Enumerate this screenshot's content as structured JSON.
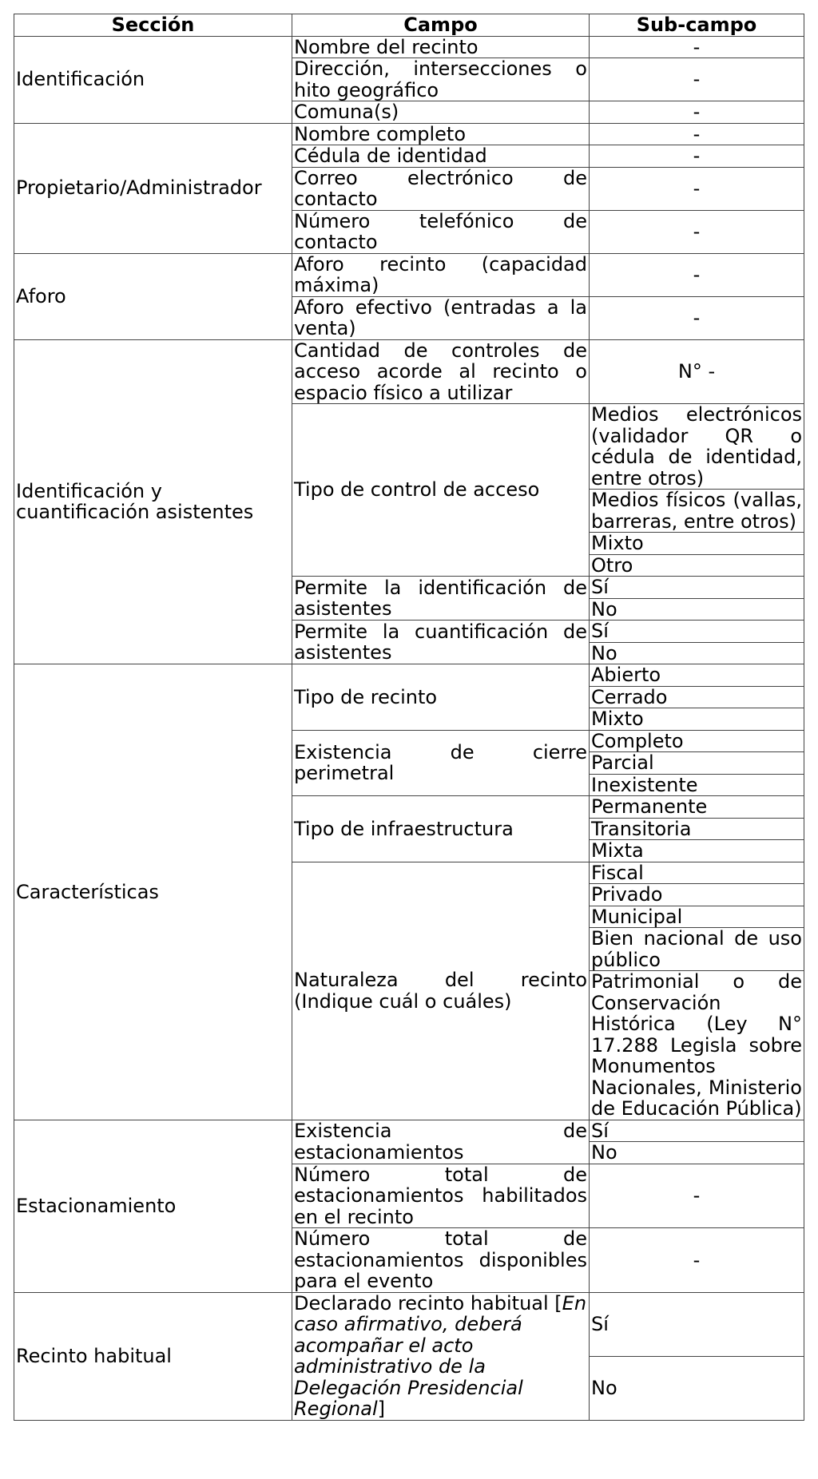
{
  "headers": [
    "Sección",
    "Campo",
    "Sub-campo"
  ],
  "sections": [
    {
      "name": "Identificación",
      "fields": [
        {
          "name": "Nombre del recinto",
          "subfields": [
            "-"
          ]
        },
        {
          "name": "Dirección, intersecciones o hito geográfico",
          "subfields": [
            "-"
          ]
        },
        {
          "name": "Comuna(s)",
          "subfields": [
            "-"
          ]
        }
      ]
    },
    {
      "name": "Propietario/Administrador",
      "fields": [
        {
          "name": "Nombre completo",
          "subfields": [
            "-"
          ]
        },
        {
          "name": "Cédula de identidad",
          "subfields": [
            "-"
          ]
        },
        {
          "name": "Correo electrónico de contacto",
          "subfields": [
            "-"
          ]
        },
        {
          "name": "Número telefónico de contacto",
          "subfields": [
            "-"
          ]
        }
      ]
    },
    {
      "name": "Aforo",
      "fields": [
        {
          "name": "Aforo recinto (capacidad máxima)",
          "subfields": [
            "-"
          ]
        },
        {
          "name": "Aforo efectivo (entradas a la venta)",
          "subfields": [
            "-"
          ]
        }
      ]
    },
    {
      "name": "Identificación y cuantificación asistentes",
      "fields": [
        {
          "name": "Cantidad de controles de acceso acorde al recinto o espacio físico a utilizar",
          "subfields": [
            "N° -"
          ]
        },
        {
          "name": "Tipo de control de acceso",
          "subfields": [
            "Medios electrónicos (validador QR o cédula de identidad, entre otros)",
            "Medios físicos (vallas, barreras, entre otros)",
            "Mixto",
            "Otro"
          ]
        },
        {
          "name": "Permite la identificación de asistentes",
          "subfields": [
            "Sí",
            "No"
          ]
        },
        {
          "name": "Permite la cuantificación de asistentes",
          "subfields": [
            "Sí",
            "No"
          ]
        }
      ]
    },
    {
      "name": "Características",
      "fields": [
        {
          "name": "Tipo de recinto",
          "subfields": [
            "Abierto",
            "Cerrado",
            "Mixto"
          ]
        },
        {
          "name": "Existencia de cierre perimetral",
          "subfields": [
            "Completo",
            "Parcial",
            "Inexistente"
          ]
        },
        {
          "name": "Tipo de infraestructura",
          "subfields": [
            "Permanente",
            "Transitoria",
            "Mixta"
          ]
        },
        {
          "name": "Naturaleza del recinto (Indique cuál o cuáles)",
          "subfields": [
            "Fiscal",
            "Privado",
            "Municipal",
            "Bien nacional de uso público",
            "Patrimonial o de Conservación Histórica (Ley N° 17.288 Legisla sobre Monumentos Nacionales, Ministerio de Educación Pública)"
          ]
        }
      ]
    },
    {
      "name": "Estacionamiento",
      "fields": [
        {
          "name": "Existencia de estacionamientos",
          "subfields": [
            "Sí",
            "No"
          ]
        },
        {
          "name": "Número total de estacionamientos habilitados en el recinto",
          "subfields": [
            "-"
          ]
        },
        {
          "name": "Número total de estacionamientos disponibles para el evento",
          "subfields": [
            "-"
          ]
        }
      ]
    },
    {
      "name": "Recinto habitual",
      "fields": [
        {
          "name": "Declarado recinto habitual",
          "note": "En caso afirmativo, deberá acompañar el acto administrativo de la Delegación Presidencial Regional",
          "subfields": [
            "Sí",
            "No"
          ]
        }
      ]
    }
  ]
}
